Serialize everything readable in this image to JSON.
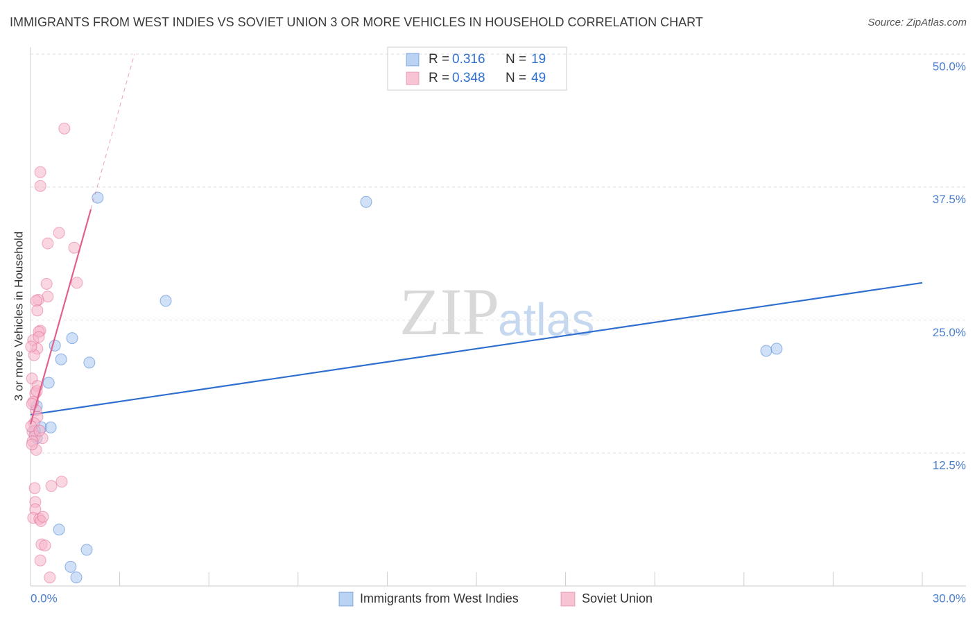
{
  "chart_data": {
    "type": "scatter",
    "title": "IMMIGRANTS FROM WEST INDIES VS SOVIET UNION 3 OR MORE VEHICLES IN HOUSEHOLD CORRELATION CHART",
    "source": "Source: ZipAtlas.com",
    "y_label": "3 or more Vehicles in Household",
    "watermark": [
      "ZIP",
      "atlas"
    ],
    "legend_r_label": "R =",
    "legend_n_label": "N =",
    "xlim": [
      0,
      30
    ],
    "ylim": [
      0,
      50
    ],
    "xticks": [
      {
        "value": 0,
        "label": "0.0%"
      },
      {
        "value": 30,
        "label": "30.0%"
      }
    ],
    "xminorticks": [
      3,
      6,
      9,
      12,
      15,
      18,
      21,
      24,
      27
    ],
    "yticks": [
      {
        "value": 12.5,
        "label": "12.5%"
      },
      {
        "value": 25,
        "label": "25.0%"
      },
      {
        "value": 37.5,
        "label": "37.5%"
      },
      {
        "value": 50,
        "label": "50.0%"
      }
    ],
    "grid": true,
    "series": [
      {
        "name": "Immigrants from West Indies",
        "color": "#2f6fcf",
        "fill": "#a9c8f0",
        "r": 0.316,
        "n": 19,
        "x": [
          2.26,
          11.29,
          4.55,
          0.82,
          1.4,
          1.03,
          1.98,
          0.61,
          0.21,
          0.37,
          0.68,
          0.21,
          24.75,
          25.1,
          0.96,
          1.89,
          1.35,
          1.54,
          0.14
        ],
        "values": [
          36.5,
          36.1,
          26.8,
          22.6,
          23.3,
          21.3,
          21.0,
          19.1,
          16.9,
          14.9,
          14.9,
          13.9,
          22.1,
          22.3,
          5.3,
          3.4,
          1.8,
          0.8,
          14.6
        ],
        "trend": {
          "x": [
            0,
            30
          ],
          "y": [
            16.1,
            28.5
          ]
        }
      },
      {
        "name": "Soviet Union",
        "color": "#e0608f",
        "fill": "#f5b5c8",
        "r": 0.348,
        "n": 49,
        "x": [
          1.14,
          0.33,
          0.33,
          0.96,
          0.58,
          1.47,
          1.56,
          0.54,
          0.58,
          0.26,
          0.19,
          0.23,
          0.33,
          0.28,
          0.09,
          0.23,
          0.12,
          0.05,
          0.23,
          0.16,
          0.09,
          0.19,
          0.23,
          0.12,
          0.07,
          0.14,
          0.4,
          0.07,
          0.19,
          1.05,
          0.7,
          0.14,
          0.16,
          0.16,
          0.09,
          0.3,
          0.35,
          0.37,
          0.49,
          0.33,
          0.65,
          0.05,
          0.02,
          0.21,
          0.05,
          0.3,
          0.02,
          0.28,
          0.42
        ],
        "values": [
          43.0,
          38.9,
          37.6,
          33.2,
          32.2,
          31.8,
          28.5,
          28.4,
          27.2,
          26.9,
          26.8,
          25.9,
          24.0,
          23.9,
          23.1,
          22.3,
          21.7,
          19.5,
          18.8,
          18.1,
          17.3,
          16.5,
          15.9,
          15.3,
          14.5,
          14.1,
          13.9,
          13.6,
          12.8,
          9.8,
          9.4,
          9.2,
          7.9,
          7.2,
          6.4,
          6.3,
          6.1,
          3.9,
          3.8,
          2.4,
          0.8,
          17.1,
          15.0,
          18.3,
          13.3,
          14.6,
          22.5,
          23.4,
          6.5
        ],
        "trend": {
          "x": [
            0,
            2.03
          ],
          "y": [
            15.2,
            35.4
          ]
        },
        "trend_dashed_extension": true
      }
    ]
  }
}
